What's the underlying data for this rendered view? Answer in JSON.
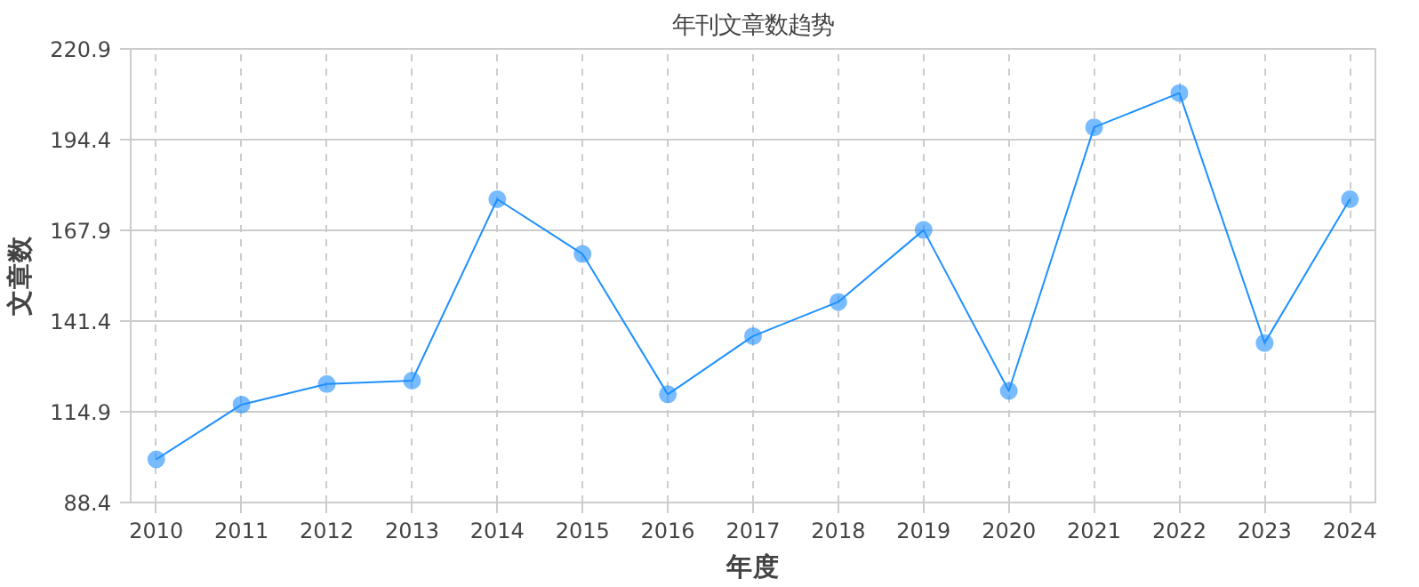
{
  "chart_data": {
    "type": "line",
    "title": "年刊文章数趋势",
    "xlabel": "年度",
    "ylabel": "文章数",
    "categories": [
      "2010",
      "2011",
      "2012",
      "2013",
      "2014",
      "2015",
      "2016",
      "2017",
      "2018",
      "2019",
      "2020",
      "2021",
      "2022",
      "2023",
      "2024"
    ],
    "series": [
      {
        "color": "#1e90ff",
        "values": [
          101,
          117,
          123,
          124,
          177,
          161,
          120,
          137,
          147,
          168,
          121,
          198,
          208,
          135,
          177
        ]
      }
    ],
    "ylim": [
      88.4,
      220.9
    ],
    "yticks": [
      88.4,
      114.9,
      141.4,
      167.9,
      194.4,
      220.9
    ],
    "grid": true,
    "marker": "circle",
    "line_style": "solid"
  }
}
